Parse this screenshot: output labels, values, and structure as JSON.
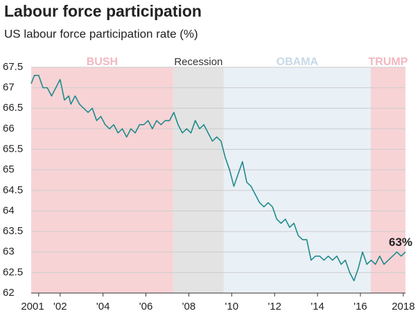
{
  "chart_data": {
    "type": "line",
    "title": "Labour force participation",
    "subtitle": "US labour force participation rate (%)",
    "x": [
      2000.65,
      2000.8,
      2001.0,
      2001.2,
      2001.4,
      2001.6,
      2001.8,
      2002.0,
      2002.2,
      2002.4,
      2002.5,
      2002.7,
      2002.9,
      2003.1,
      2003.3,
      2003.5,
      2003.7,
      2003.9,
      2004.1,
      2004.3,
      2004.5,
      2004.7,
      2004.9,
      2005.1,
      2005.3,
      2005.5,
      2005.7,
      2005.9,
      2006.1,
      2006.3,
      2006.5,
      2006.7,
      2006.9,
      2007.1,
      2007.3,
      2007.5,
      2007.7,
      2007.9,
      2008.1,
      2008.3,
      2008.5,
      2008.7,
      2008.9,
      2009.1,
      2009.3,
      2009.5,
      2009.7,
      2009.9,
      2010.1,
      2010.3,
      2010.5,
      2010.7,
      2010.9,
      2011.1,
      2011.3,
      2011.5,
      2011.7,
      2011.9,
      2012.1,
      2012.3,
      2012.5,
      2012.7,
      2012.9,
      2013.1,
      2013.3,
      2013.5,
      2013.7,
      2013.9,
      2014.1,
      2014.3,
      2014.5,
      2014.7,
      2014.9,
      2015.1,
      2015.3,
      2015.5,
      2015.7,
      2015.9,
      2016.1,
      2016.3,
      2016.5,
      2016.7,
      2016.9,
      2017.1,
      2017.3,
      2017.5,
      2017.7,
      2017.9,
      2018.1
    ],
    "series": [
      {
        "name": "Participation rate",
        "color": "#1f8a8a",
        "values": [
          67.1,
          67.3,
          67.3,
          67.0,
          67.0,
          66.8,
          67.0,
          67.2,
          66.7,
          66.8,
          66.6,
          66.8,
          66.6,
          66.5,
          66.4,
          66.5,
          66.2,
          66.3,
          66.1,
          66.0,
          66.1,
          65.9,
          66.0,
          65.8,
          66.0,
          65.9,
          66.1,
          66.1,
          66.2,
          66.0,
          66.2,
          66.1,
          66.2,
          66.2,
          66.4,
          66.1,
          65.9,
          66.0,
          65.9,
          66.2,
          66.0,
          66.1,
          65.9,
          65.7,
          65.8,
          65.7,
          65.3,
          65.0,
          64.6,
          64.9,
          65.2,
          64.7,
          64.6,
          64.4,
          64.2,
          64.1,
          64.2,
          64.1,
          63.8,
          63.7,
          63.8,
          63.6,
          63.7,
          63.4,
          63.3,
          63.3,
          62.8,
          62.9,
          62.9,
          62.8,
          62.9,
          62.8,
          62.9,
          62.7,
          62.8,
          62.5,
          62.3,
          62.6,
          63.0,
          62.7,
          62.8,
          62.7,
          62.9,
          62.7,
          62.8,
          62.9,
          63.0,
          62.9,
          63.0
        ]
      }
    ],
    "end_label": "63%",
    "regions": [
      {
        "label": "BUSH",
        "start": 2000.65,
        "end": 2007.27,
        "color": "#f7d3d6",
        "label_color": "#f2b7bf"
      },
      {
        "label": "Recession",
        "start": 2007.27,
        "end": 2009.63,
        "color": "#e3e3e3",
        "label_color": "#333333"
      },
      {
        "label": "OBAMA",
        "start": 2009.63,
        "end": 2016.48,
        "color": "#e9f0f6",
        "label_color": "#c6d8e6"
      },
      {
        "label": "TRUMP",
        "start": 2016.48,
        "end": 2018.1,
        "color": "#f7d3d6",
        "label_color": "#f2b7bf"
      }
    ],
    "xlim": [
      2000.65,
      2018.1
    ],
    "xticks": [
      {
        "value": 2001,
        "label": "2001"
      },
      {
        "value": 2002,
        "label": "'02"
      },
      {
        "value": 2004,
        "label": "'04"
      },
      {
        "value": 2006,
        "label": "'06"
      },
      {
        "value": 2008,
        "label": "'08"
      },
      {
        "value": 2010,
        "label": "'10"
      },
      {
        "value": 2012,
        "label": "'12"
      },
      {
        "value": 2014,
        "label": "'14"
      },
      {
        "value": 2016,
        "label": "'16"
      },
      {
        "value": 2018,
        "label": "2018"
      }
    ],
    "ylim": [
      62,
      67.5
    ],
    "yticks": [
      62,
      62.5,
      63,
      63.5,
      64,
      64.5,
      65,
      65.5,
      66,
      66.5,
      67,
      67.5
    ],
    "grid": true
  }
}
